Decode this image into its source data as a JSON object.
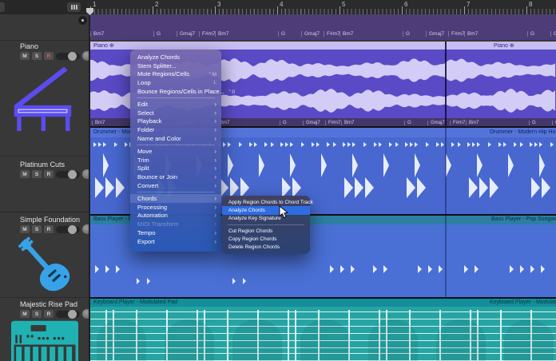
{
  "ruler": {
    "bars": [
      "1",
      "2",
      "3",
      "4",
      "5",
      "6",
      "7",
      "8"
    ]
  },
  "chord_progression": [
    "Bm7",
    "G",
    "Gmaj7",
    "F#m7"
  ],
  "controls": {
    "mute": "M",
    "solo": "S",
    "record": "R"
  },
  "tracks": [
    {
      "name": "Piano",
      "icon": "grand-piano-icon"
    },
    {
      "name": "Platinum Cuts",
      "icon": ""
    },
    {
      "name": "Simple Foundation",
      "icon": "bass-guitar-icon"
    },
    {
      "name": "Majestic Rise Pad",
      "icon": "synth-keyboard-icon"
    }
  ],
  "regions": {
    "piano": "Piano",
    "drummer": "Drummer - Modern Hip Hop",
    "bass": "Bass Player - Pop Songwriter",
    "keyboard": "Keyboard Player - Modulated Pad"
  },
  "icons": {
    "chevron": "›",
    "loop_badge": "⊕"
  },
  "context_menu": {
    "items": [
      {
        "label": "Analyze Chords"
      },
      {
        "label": "Stem Splitter..."
      },
      {
        "label": "Mute Regions/Cells",
        "shortcut": "⌃M"
      },
      {
        "label": "Loop",
        "shortcut": "L"
      },
      {
        "label": "Bounce Regions/Cells in Place...",
        "shortcut": "⌃B"
      },
      {
        "divider": true
      },
      {
        "label": "Edit",
        "submenu": true
      },
      {
        "label": "Select",
        "submenu": true
      },
      {
        "label": "Playback",
        "submenu": true
      },
      {
        "label": "Folder",
        "submenu": true
      },
      {
        "label": "Name and Color",
        "submenu": true
      },
      {
        "divider": true
      },
      {
        "label": "Move",
        "submenu": true
      },
      {
        "label": "Trim",
        "submenu": true
      },
      {
        "label": "Split",
        "submenu": true
      },
      {
        "label": "Bounce or Join",
        "submenu": true
      },
      {
        "label": "Convert",
        "submenu": true
      },
      {
        "divider": true
      },
      {
        "label": "Chords",
        "submenu": true,
        "open": true
      },
      {
        "label": "Processing",
        "submenu": true
      },
      {
        "label": "Automation",
        "submenu": true
      },
      {
        "label": "MIDI Transform",
        "submenu": true,
        "disabled": true
      },
      {
        "label": "Tempo",
        "submenu": true
      },
      {
        "label": "Export",
        "submenu": true
      }
    ]
  },
  "chords_submenu": {
    "items": [
      {
        "label": "Apply Region Chords to Chord Track"
      },
      {
        "label": "Analyze Chords",
        "highlighted": true
      },
      {
        "label": "Analyze Key Signature"
      },
      {
        "divider": true
      },
      {
        "label": "Cut Region Chords"
      },
      {
        "label": "Copy Region Chords"
      },
      {
        "label": "Delete Region Chords"
      }
    ]
  },
  "colors": {
    "menu_highlight": "#2e6ce2",
    "piano_region": "#5a4ac6",
    "drummer_region": "#4868d0",
    "bass_region": "#4a70d6",
    "keyboard_region": "#26a4a4",
    "chord_track": "#4e3c78",
    "record_red": "#ef5350"
  }
}
